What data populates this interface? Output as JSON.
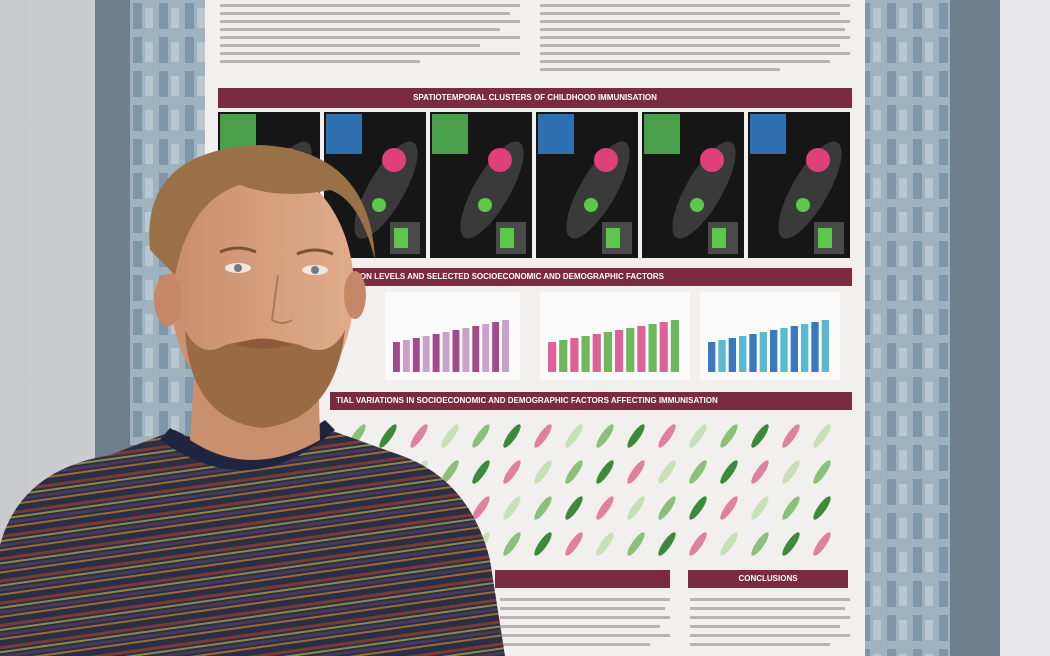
{
  "poster": {
    "section_titles": [
      "SPATIOTEMPORAL CLUSTERS OF CHILDHOOD IMMUNISATION",
      "ISATION LEVELS AND SELECTED SOCIOECONOMIC AND DEMOGRAPHIC FACTORS",
      "TIAL VARIATIONS IN SOCIOECONOMIC AND DEMOGRAPHIC FACTORS AFFECTING IMMUNISATION",
      "CONCLUSIONS"
    ]
  }
}
